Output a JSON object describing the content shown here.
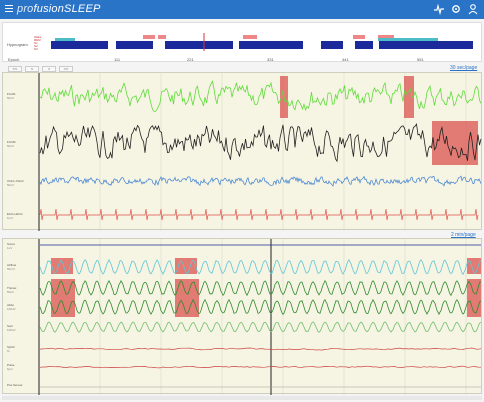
{
  "header": {
    "brand_prefix": "pro",
    "brand_main": "fusionSLEEP",
    "icons": [
      "menu-icon",
      "pulse-icon",
      "gear-icon",
      "user-icon"
    ]
  },
  "hypnogram": {
    "label": "Hypnogram",
    "stage_labels": [
      "Wake",
      "REM",
      "N1",
      "N2",
      "N3"
    ]
  },
  "epoch": {
    "label": "Epoch",
    "ticks": [
      "111",
      "221",
      "331",
      "441",
      "551"
    ]
  },
  "nav": {
    "buttons": [
      "<<",
      "<",
      ">",
      ">>"
    ]
  },
  "eeg_panel": {
    "window_link": "30 sec/page",
    "channels": [
      {
        "name": "F4-M1",
        "unit": "50uV"
      },
      {
        "name": "F3-M2",
        "unit": "50uV"
      },
      {
        "name": "Chin1-Chin2",
        "unit": "50uV"
      },
      {
        "name": "ECG-LECG",
        "unit": "1mV"
      }
    ]
  },
  "resp_panel": {
    "window_link": "2 min/page",
    "channels": [
      {
        "name": "Snore",
        "unit": "1uV"
      },
      {
        "name": "Airflow",
        "unit": "50mV"
      },
      {
        "name": "Thorax",
        "unit": "50uV"
      },
      {
        "name": "Abdo",
        "unit": "100uV"
      },
      {
        "name": "Sum",
        "unit": "100uV"
      },
      {
        "name": "SpO2",
        "unit": "%"
      },
      {
        "name": "Pulse",
        "unit": "bpm"
      },
      {
        "name": "Pos Sensor",
        "unit": ""
      }
    ]
  },
  "colors": {
    "header": "#2a74c8",
    "hypnogram_bar": "#1a2a9a",
    "event_red": "#d9534f",
    "eeg_green": "#5fdc3c",
    "eeg_black": "#222222",
    "emg_blue": "#3b7fd1",
    "ecg_red": "#e0504a",
    "airflow_cyan": "#5fc6d6",
    "effort_green": "#2e8b2e"
  }
}
